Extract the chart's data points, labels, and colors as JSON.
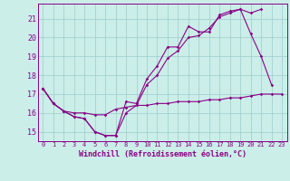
{
  "title": "",
  "xlabel": "Windchill (Refroidissement éolien,°C)",
  "bg_color": "#cceee8",
  "line_color": "#880088",
  "grid_color": "#99cccc",
  "hours": [
    0,
    1,
    2,
    3,
    4,
    5,
    6,
    7,
    8,
    9,
    10,
    11,
    12,
    13,
    14,
    15,
    16,
    17,
    18,
    19,
    20,
    21,
    22,
    23
  ],
  "line1": [
    17.3,
    16.5,
    16.1,
    15.8,
    15.7,
    15.0,
    14.8,
    14.8,
    16.6,
    16.5,
    17.8,
    18.5,
    19.5,
    19.5,
    20.6,
    20.3,
    20.3,
    21.2,
    21.4,
    21.5,
    20.2,
    19.0,
    17.5,
    null
  ],
  "line2": [
    17.3,
    16.5,
    16.1,
    15.8,
    15.7,
    15.0,
    14.8,
    14.8,
    16.0,
    16.4,
    17.5,
    18.0,
    18.9,
    19.3,
    20.0,
    20.1,
    20.5,
    21.1,
    21.3,
    21.5,
    21.3,
    21.5,
    null,
    null
  ],
  "line3": [
    17.3,
    16.5,
    16.1,
    16.0,
    16.0,
    15.9,
    15.9,
    16.2,
    16.3,
    16.4,
    16.4,
    16.5,
    16.5,
    16.6,
    16.6,
    16.6,
    16.7,
    16.7,
    16.8,
    16.8,
    16.9,
    17.0,
    17.0,
    17.0
  ],
  "ylim": [
    14.5,
    21.8
  ],
  "xlim": [
    -0.5,
    23.5
  ],
  "yticks": [
    15,
    16,
    17,
    18,
    19,
    20,
    21
  ],
  "xtick_labels": [
    "0",
    "1",
    "2",
    "3",
    "4",
    "5",
    "6",
    "7",
    "8",
    "9",
    "10",
    "11",
    "12",
    "13",
    "14",
    "15",
    "16",
    "17",
    "18",
    "19",
    "20",
    "21",
    "22",
    "23"
  ]
}
